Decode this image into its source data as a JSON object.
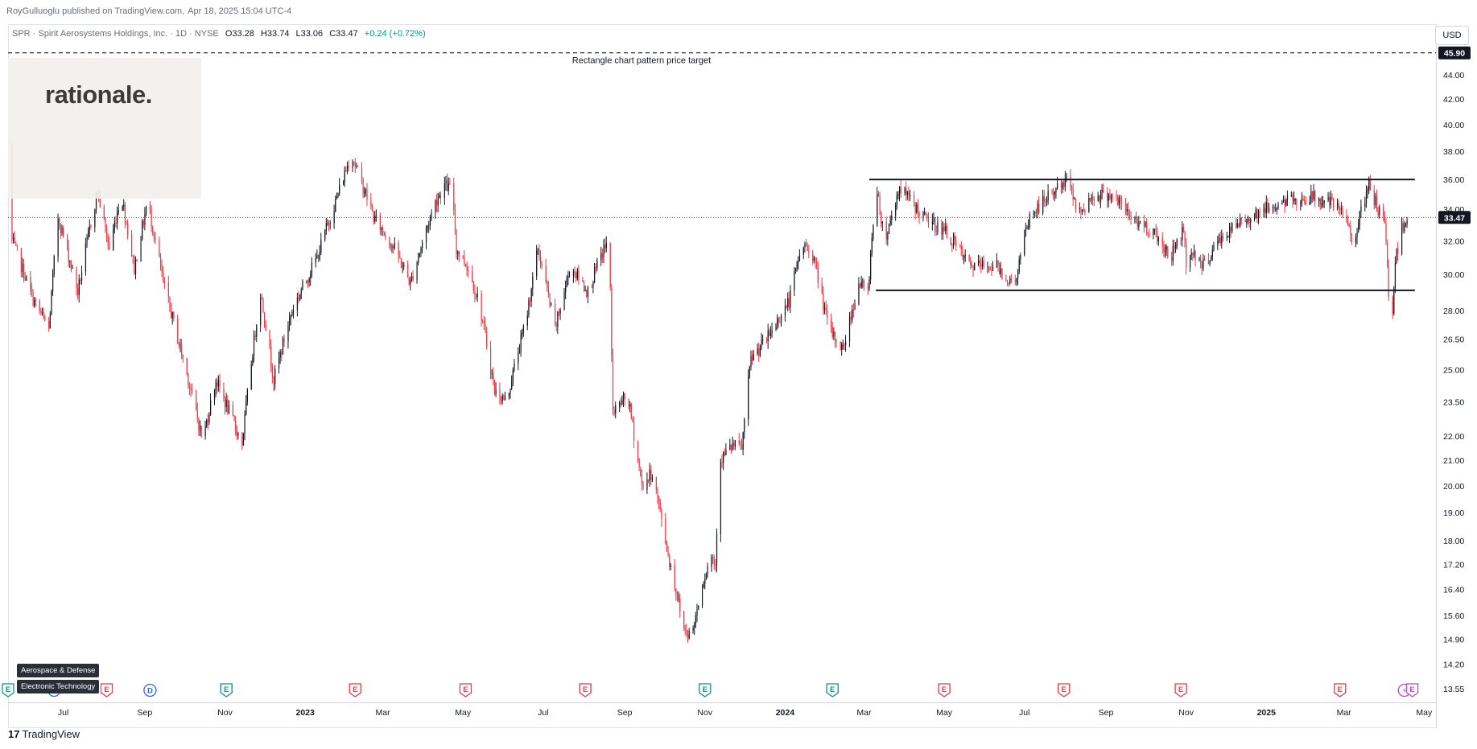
{
  "header": {
    "publisher": "RoyGulluoglu published on TradingView.com,",
    "timestamp": "Apr 18, 2025 15:04 UTC-4"
  },
  "symbol_bar": {
    "symbol_text": "SPR · Spirit Aerosystems Holdings, Inc. · 1D · NYSE",
    "open": "O33.28",
    "high": "H33.74",
    "low": "L33.06",
    "close": "C33.47",
    "change": "+0.24 (+0.72%)"
  },
  "currency": "USD",
  "logo_text": "rationale.",
  "sector_tags": [
    "Aerospace & Defense",
    "Electronic Technology"
  ],
  "brand": {
    "icon": "17",
    "name": "TradingView"
  },
  "colors": {
    "up": "#131722",
    "down": "#f23645",
    "earnings": "#f23645",
    "earnings_teal": "#089981",
    "dividend": "#2962ff",
    "split": "#b848d4",
    "target_line": "#131722"
  },
  "chart_data": {
    "type": "candlestick",
    "title": "SPR · Spirit Aerosystems Holdings, Inc. · 1D · NYSE",
    "y_axis": {
      "scale": "log",
      "range": [
        13.2,
        48.5
      ],
      "ticks": [
        "44.00",
        "42.00",
        "40.00",
        "38.00",
        "36.00",
        "34.00",
        "32.00",
        "30.00",
        "28.00",
        "26.50",
        "25.00",
        "23.50",
        "22.00",
        "21.00",
        "20.00",
        "19.00",
        "18.00",
        "17.20",
        "16.40",
        "15.60",
        "14.90",
        "14.20",
        "13.55"
      ]
    },
    "x_axis": {
      "range": [
        "2022-05-20",
        "2025-05-10"
      ],
      "ticks": [
        {
          "label": "Jul",
          "date": "2022-07-01",
          "bold": false
        },
        {
          "label": "Sep",
          "date": "2022-09-01",
          "bold": false
        },
        {
          "label": "Nov",
          "date": "2022-11-01",
          "bold": false
        },
        {
          "label": "2023",
          "date": "2023-01-01",
          "bold": true
        },
        {
          "label": "Mar",
          "date": "2023-03-01",
          "bold": false
        },
        {
          "label": "May",
          "date": "2023-05-01",
          "bold": false
        },
        {
          "label": "Jul",
          "date": "2023-07-01",
          "bold": false
        },
        {
          "label": "Sep",
          "date": "2023-09-01",
          "bold": false
        },
        {
          "label": "Nov",
          "date": "2023-11-01",
          "bold": false
        },
        {
          "label": "2024",
          "date": "2024-01-01",
          "bold": true
        },
        {
          "label": "Mar",
          "date": "2024-03-01",
          "bold": false
        },
        {
          "label": "May",
          "date": "2024-05-01",
          "bold": false
        },
        {
          "label": "Jul",
          "date": "2024-07-01",
          "bold": false
        },
        {
          "label": "Sep",
          "date": "2024-09-01",
          "bold": false
        },
        {
          "label": "Nov",
          "date": "2024-11-01",
          "bold": false
        },
        {
          "label": "2025",
          "date": "2025-01-01",
          "bold": true
        },
        {
          "label": "Mar",
          "date": "2025-03-01",
          "bold": false
        },
        {
          "label": "May",
          "date": "2025-05-01",
          "bold": false
        }
      ]
    },
    "price_path": [
      [
        "2022-05-21",
        38.5
      ],
      [
        "2022-05-23",
        32.0
      ],
      [
        "2022-06-08",
        28.6
      ],
      [
        "2022-06-20",
        27.0
      ],
      [
        "2022-06-27",
        33.5
      ],
      [
        "2022-07-12",
        29.0
      ],
      [
        "2022-07-27",
        35.2
      ],
      [
        "2022-08-05",
        31.5
      ],
      [
        "2022-08-14",
        35.0
      ],
      [
        "2022-08-24",
        30.3
      ],
      [
        "2022-09-03",
        34.5
      ],
      [
        "2022-09-15",
        29.5
      ],
      [
        "2022-09-25",
        26.8
      ],
      [
        "2022-10-08",
        23.5
      ],
      [
        "2022-10-15",
        21.8
      ],
      [
        "2022-10-25",
        24.5
      ],
      [
        "2022-11-08",
        22.5
      ],
      [
        "2022-11-14",
        21.7
      ],
      [
        "2022-11-28",
        29.0
      ],
      [
        "2022-12-08",
        24.5
      ],
      [
        "2022-12-22",
        28.0
      ],
      [
        "2023-01-10",
        31.0
      ],
      [
        "2023-01-24",
        34.5
      ],
      [
        "2023-02-05",
        37.8
      ],
      [
        "2023-02-22",
        33.5
      ],
      [
        "2023-03-10",
        31.5
      ],
      [
        "2023-03-22",
        29.5
      ],
      [
        "2023-04-10",
        34.5
      ],
      [
        "2023-04-17",
        35.6
      ],
      [
        "2023-04-23",
        35.3
      ],
      [
        "2023-04-26",
        31.5
      ],
      [
        "2023-05-04",
        30.5
      ],
      [
        "2023-05-13",
        28.5
      ],
      [
        "2023-05-25",
        24.0
      ],
      [
        "2023-06-03",
        23.5
      ],
      [
        "2023-06-18",
        27.5
      ],
      [
        "2023-06-27",
        31.5
      ],
      [
        "2023-07-10",
        27.0
      ],
      [
        "2023-07-22",
        30.5
      ],
      [
        "2023-08-04",
        29.0
      ],
      [
        "2023-08-16",
        31.5
      ],
      [
        "2023-08-20",
        32.0
      ],
      [
        "2023-08-23",
        23.0
      ],
      [
        "2023-09-03",
        23.8
      ],
      [
        "2023-09-14",
        20.0
      ],
      [
        "2023-09-22",
        20.5
      ],
      [
        "2023-10-04",
        17.5
      ],
      [
        "2023-10-16",
        15.2
      ],
      [
        "2023-10-22",
        15.0
      ],
      [
        "2023-10-30",
        16.6
      ],
      [
        "2023-11-06",
        17.5
      ],
      [
        "2023-11-09",
        17.2
      ],
      [
        "2023-11-12",
        21.0
      ],
      [
        "2023-11-22",
        21.6
      ],
      [
        "2023-11-29",
        21.5
      ],
      [
        "2023-12-06",
        25.5
      ],
      [
        "2023-12-18",
        26.5
      ],
      [
        "2024-01-04",
        28.5
      ],
      [
        "2024-01-14",
        31.8
      ],
      [
        "2024-01-22",
        31.2
      ],
      [
        "2024-02-03",
        27.0
      ],
      [
        "2024-02-14",
        26.0
      ],
      [
        "2024-02-26",
        29.5
      ],
      [
        "2024-03-04",
        29.0
      ],
      [
        "2024-03-10",
        35.5
      ],
      [
        "2024-03-17",
        32.0
      ],
      [
        "2024-03-28",
        35.5
      ],
      [
        "2024-04-15",
        33.5
      ],
      [
        "2024-05-03",
        32.5
      ],
      [
        "2024-05-20",
        30.5
      ],
      [
        "2024-06-10",
        30.5
      ],
      [
        "2024-06-23",
        29.3
      ],
      [
        "2024-07-05",
        33.5
      ],
      [
        "2024-07-24",
        35.3
      ],
      [
        "2024-08-05",
        36.0
      ],
      [
        "2024-08-10",
        33.5
      ],
      [
        "2024-08-22",
        34.9
      ],
      [
        "2024-09-05",
        35.0
      ],
      [
        "2024-09-20",
        33.5
      ],
      [
        "2024-10-08",
        32.5
      ],
      [
        "2024-10-20",
        31.0
      ],
      [
        "2024-10-30",
        32.8
      ],
      [
        "2024-11-02",
        29.5
      ],
      [
        "2024-11-05",
        31.5
      ],
      [
        "2024-11-14",
        30.5
      ],
      [
        "2024-11-26",
        32.0
      ],
      [
        "2024-12-10",
        33.0
      ],
      [
        "2024-12-25",
        33.8
      ],
      [
        "2025-01-15",
        34.5
      ],
      [
        "2025-02-05",
        34.8
      ],
      [
        "2025-02-19",
        34.4
      ],
      [
        "2025-03-02",
        33.5
      ],
      [
        "2025-03-08",
        32.0
      ],
      [
        "2025-03-20",
        35.5
      ],
      [
        "2025-03-27",
        34.0
      ],
      [
        "2025-04-01",
        33.0
      ],
      [
        "2025-04-04",
        29.0
      ],
      [
        "2025-04-07",
        28.0
      ],
      [
        "2025-04-09",
        30.8
      ],
      [
        "2025-04-14",
        32.8
      ],
      [
        "2025-04-18",
        33.47
      ]
    ],
    "last_price": "33.47",
    "last_price_value": 33.47,
    "annotations": {
      "price_target": {
        "label": "Rectangle chart pattern price target",
        "value": 45.9,
        "value_label": "45.90"
      },
      "rectangle_top": {
        "value": 36.0,
        "start": "2024-03-05",
        "end": "2025-04-24"
      },
      "rectangle_bottom": {
        "value": 29.1,
        "start": "2024-03-10",
        "end": "2025-04-24"
      }
    },
    "events": [
      {
        "type": "earnings",
        "date": "2022-05-20",
        "label": "E",
        "color": "teal"
      },
      {
        "type": "dividend",
        "date": "2022-06-24",
        "label": "D"
      },
      {
        "type": "earnings",
        "date": "2022-08-03",
        "label": "E",
        "color": "red"
      },
      {
        "type": "dividend",
        "date": "2022-09-05",
        "label": "D"
      },
      {
        "type": "earnings",
        "date": "2022-11-02",
        "label": "E",
        "color": "teal"
      },
      {
        "type": "earnings",
        "date": "2023-02-08",
        "label": "E",
        "color": "red"
      },
      {
        "type": "earnings",
        "date": "2023-05-03",
        "label": "E",
        "color": "red"
      },
      {
        "type": "earnings",
        "date": "2023-08-02",
        "label": "E",
        "color": "red"
      },
      {
        "type": "earnings",
        "date": "2023-11-01",
        "label": "E",
        "color": "teal"
      },
      {
        "type": "earnings",
        "date": "2024-02-06",
        "label": "E",
        "color": "teal"
      },
      {
        "type": "earnings",
        "date": "2024-05-01",
        "label": "E",
        "color": "red"
      },
      {
        "type": "earnings",
        "date": "2024-07-31",
        "label": "E",
        "color": "red"
      },
      {
        "type": "earnings",
        "date": "2024-10-28",
        "label": "E",
        "color": "red"
      },
      {
        "type": "earnings",
        "date": "2025-02-26",
        "label": "E",
        "color": "red"
      },
      {
        "type": "split",
        "date": "2025-04-16",
        "label": "⚡"
      },
      {
        "type": "earnings",
        "date": "2025-04-22",
        "label": "E",
        "color": "purple"
      }
    ]
  }
}
